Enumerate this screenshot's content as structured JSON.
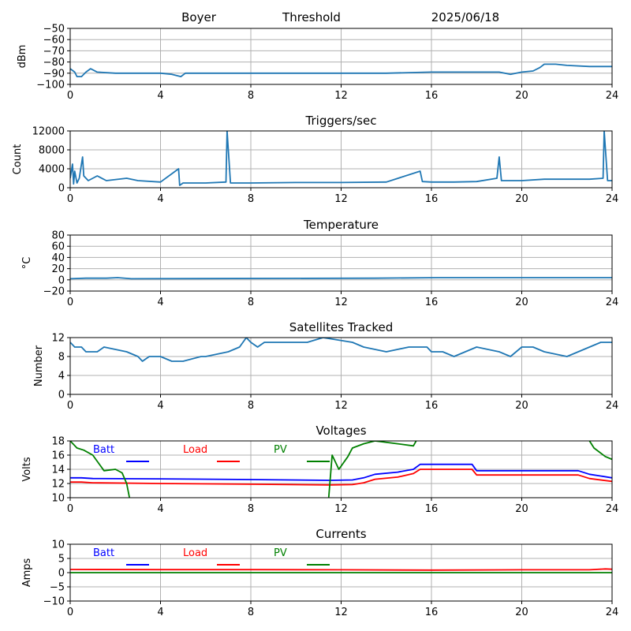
{
  "header": {
    "station": "Boyer",
    "mode": "Threshold",
    "date": "2025/06/18"
  },
  "colors": {
    "signal": "#1f77b4",
    "batt": "#0000ff",
    "load": "#ff0000",
    "pv": "#008000",
    "grid": "#b0b0b0",
    "axis": "#000000"
  },
  "chart_data": [
    {
      "type": "line",
      "title": "",
      "xlabel": "",
      "ylabel": "dBm",
      "xlim": [
        0,
        24
      ],
      "ylim": [
        -100,
        -50
      ],
      "xticks": [
        0,
        4,
        8,
        12,
        16,
        20,
        24
      ],
      "yticks": [
        -100,
        -90,
        -80,
        -70,
        -60,
        -50
      ],
      "grid": true,
      "series": [
        {
          "color": "#1f77b4",
          "x": [
            0,
            0.2,
            0.3,
            0.5,
            0.7,
            0.9,
            1.2,
            2,
            3,
            4,
            4.5,
            4.9,
            5.1,
            6,
            8,
            10,
            12,
            14,
            16,
            18,
            19,
            19.5,
            20,
            20.5,
            20.8,
            21,
            21.5,
            22,
            23,
            23.5,
            24
          ],
          "y": [
            -86,
            -89,
            -93,
            -93,
            -89,
            -86,
            -89,
            -90,
            -90,
            -90,
            -91,
            -93,
            -90,
            -90,
            -90,
            -90,
            -90,
            -90,
            -89,
            -89,
            -89,
            -91,
            -89,
            -88,
            -85,
            -82,
            -82,
            -83,
            -84,
            -84,
            -84
          ]
        }
      ]
    },
    {
      "type": "line",
      "title": "Triggers/sec",
      "xlabel": "",
      "ylabel": "Count",
      "xlim": [
        0,
        24
      ],
      "ylim": [
        0,
        12000
      ],
      "xticks": [
        0,
        4,
        8,
        12,
        16,
        20,
        24
      ],
      "yticks": [
        0,
        4000,
        8000,
        12000
      ],
      "grid": true,
      "series": [
        {
          "color": "#1f77b4",
          "x": [
            0,
            0.1,
            0.15,
            0.2,
            0.3,
            0.4,
            0.55,
            0.6,
            0.8,
            1.2,
            1.6,
            2.5,
            3,
            4,
            4.8,
            4.85,
            5,
            6,
            6.9,
            6.95,
            7.1,
            8,
            10,
            12,
            14,
            15.5,
            15.6,
            16,
            17,
            18,
            18.9,
            19.0,
            19.1,
            20,
            21,
            22,
            23,
            23.6,
            23.65,
            23.8,
            24
          ],
          "y": [
            2000,
            5000,
            800,
            3500,
            1000,
            2000,
            6500,
            2500,
            1500,
            2500,
            1500,
            2000,
            1500,
            1200,
            4000,
            500,
            1000,
            1000,
            1200,
            12000,
            1000,
            1000,
            1100,
            1100,
            1200,
            3500,
            1300,
            1200,
            1200,
            1300,
            2000,
            6500,
            1500,
            1500,
            1800,
            1800,
            1800,
            2000,
            12000,
            1500,
            1500
          ]
        }
      ]
    },
    {
      "type": "line",
      "title": "Temperature",
      "xlabel": "",
      "ylabel": "°C",
      "xlim": [
        0,
        24
      ],
      "ylim": [
        -20,
        80
      ],
      "xticks": [
        0,
        4,
        8,
        12,
        16,
        20,
        24
      ],
      "yticks": [
        -20,
        0,
        20,
        40,
        60,
        80
      ],
      "grid": true,
      "series": [
        {
          "color": "#1f77b4",
          "x": [
            0,
            0.7,
            1.6,
            2.1,
            2.7,
            13.5,
            16.3,
            24
          ],
          "y": [
            2,
            3,
            3,
            4,
            2,
            3,
            4,
            4
          ]
        }
      ]
    },
    {
      "type": "line",
      "title": "Satellites Tracked",
      "xlabel": "",
      "ylabel": "Number",
      "xlim": [
        0,
        24
      ],
      "ylim": [
        0,
        12
      ],
      "xticks": [
        0,
        4,
        8,
        12,
        16,
        20,
        24
      ],
      "yticks": [
        0,
        4,
        8,
        12
      ],
      "grid": true,
      "series": [
        {
          "color": "#1f77b4",
          "x": [
            0,
            0.2,
            0.5,
            0.7,
            1.2,
            1.5,
            2.5,
            3,
            3.2,
            3.5,
            4,
            4.5,
            5,
            5.8,
            6,
            7,
            7.5,
            7.8,
            8,
            8.3,
            8.6,
            9,
            10.5,
            11.2,
            12.5,
            13,
            14,
            15,
            15.8,
            16,
            16.5,
            17,
            17.5,
            18,
            19,
            19.5,
            20,
            20.5,
            21,
            22,
            22.5,
            23,
            23.5,
            24
          ],
          "y": [
            11,
            10,
            10,
            9,
            9,
            10,
            9,
            8,
            7,
            8,
            8,
            7,
            7,
            8,
            8,
            9,
            10,
            12,
            11,
            10,
            11,
            11,
            11,
            12,
            11,
            10,
            9,
            10,
            10,
            9,
            9,
            8,
            9,
            10,
            9,
            8,
            10,
            10,
            9,
            8,
            9,
            10,
            11,
            11
          ]
        }
      ]
    },
    {
      "type": "line",
      "title": "Voltages",
      "xlabel": "",
      "ylabel": "Volts",
      "xlim": [
        0,
        24
      ],
      "ylim": [
        10,
        18
      ],
      "xticks": [
        0,
        4,
        8,
        12,
        16,
        20,
        24
      ],
      "yticks": [
        10,
        12,
        14,
        16,
        18
      ],
      "grid": true,
      "legend": "top",
      "series": [
        {
          "name": "Batt",
          "color": "#0000ff",
          "x": [
            0,
            0.5,
            1,
            4,
            8,
            11.5,
            12.5,
            13,
            13.5,
            14.5,
            15.2,
            15.5,
            17.8,
            18,
            22.5,
            23,
            24
          ],
          "y": [
            12.8,
            12.8,
            12.7,
            12.65,
            12.55,
            12.45,
            12.5,
            12.8,
            13.3,
            13.6,
            14.0,
            14.7,
            14.7,
            13.8,
            13.8,
            13.3,
            12.8
          ]
        },
        {
          "name": "Load",
          "color": "#ff0000",
          "x": [
            0,
            0.5,
            1,
            4,
            8,
            11.5,
            12.5,
            13,
            13.5,
            14.5,
            15.2,
            15.5,
            17.8,
            18,
            22.5,
            23,
            24
          ],
          "y": [
            12.2,
            12.2,
            12.1,
            12.0,
            11.9,
            11.8,
            11.85,
            12.1,
            12.6,
            12.9,
            13.4,
            14.0,
            14.0,
            13.2,
            13.2,
            12.7,
            12.3
          ]
        },
        {
          "name": "PV",
          "color": "#008000",
          "x": [
            0,
            0.3,
            0.6,
            1.0,
            1.5,
            2.0,
            2.3,
            2.5,
            2.75,
            11.4,
            11.6,
            11.9,
            12.3,
            12.5,
            13,
            13.5,
            14.5,
            15.2,
            15.5,
            22.8,
            23.2,
            23.7,
            24
          ],
          "y": [
            18,
            17,
            16.7,
            16,
            13.8,
            14,
            13.5,
            12,
            8,
            8,
            16,
            14,
            15.8,
            17,
            17.6,
            18,
            17.6,
            17.3,
            19,
            19,
            17,
            15.8,
            15.4
          ]
        }
      ]
    },
    {
      "type": "line",
      "title": "Currents",
      "xlabel": "",
      "ylabel": "Amps",
      "xlim": [
        0,
        24
      ],
      "ylim": [
        -10,
        10
      ],
      "xticks": [
        0,
        4,
        8,
        12,
        16,
        20,
        24
      ],
      "yticks": [
        -10,
        -5,
        0,
        5,
        10
      ],
      "grid": true,
      "legend": "top",
      "series": [
        {
          "name": "Batt",
          "color": "#0000ff",
          "x": [],
          "y": []
        },
        {
          "name": "Load",
          "color": "#ff0000",
          "x": [
            0,
            4,
            8,
            12,
            16,
            20,
            23,
            23.7,
            24
          ],
          "y": [
            1.1,
            1.05,
            1.05,
            1.0,
            0.9,
            1.0,
            1.0,
            1.3,
            1.2
          ]
        },
        {
          "name": "PV",
          "color": "#008000",
          "x": [
            0,
            12,
            24
          ],
          "y": [
            0,
            0,
            0
          ]
        }
      ]
    }
  ]
}
